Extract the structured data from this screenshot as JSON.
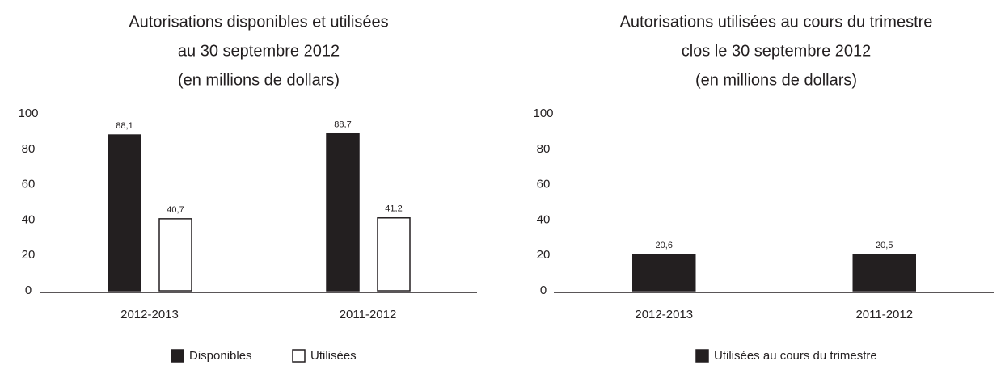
{
  "chart_data": [
    {
      "type": "bar",
      "title": [
        "Autorisations disponibles et utilisées",
        "au 30 septembre 2012",
        "(en millions de dollars)"
      ],
      "categories": [
        "2012-2013",
        "2011-2012"
      ],
      "series": [
        {
          "name": "Disponibles",
          "color": "#231f20",
          "values": [
            88.1,
            88.7
          ],
          "value_labels": [
            "88,1",
            "88,7"
          ]
        },
        {
          "name": "Utilisées",
          "color": "#ffffff",
          "values": [
            40.7,
            41.2
          ],
          "value_labels": [
            "40,7",
            "41,2"
          ]
        }
      ],
      "ylim": [
        0,
        100
      ],
      "yticks": [
        0,
        20,
        40,
        60,
        80,
        100
      ],
      "grid": false,
      "legend": "bottom"
    },
    {
      "type": "bar",
      "title": [
        "Autorisations utilisées au cours du trimestre",
        "clos le 30 septembre 2012",
        "(en millions de dollars)"
      ],
      "categories": [
        "2012-2013",
        "2011-2012"
      ],
      "series": [
        {
          "name": "Utilisées au cours du trimestre",
          "color": "#231f20",
          "values": [
            20.6,
            20.5
          ],
          "value_labels": [
            "20,6",
            "20,5"
          ]
        }
      ],
      "ylim": [
        0,
        100
      ],
      "yticks": [
        0,
        20,
        40,
        60,
        80,
        100
      ],
      "grid": false,
      "legend": "bottom"
    }
  ]
}
